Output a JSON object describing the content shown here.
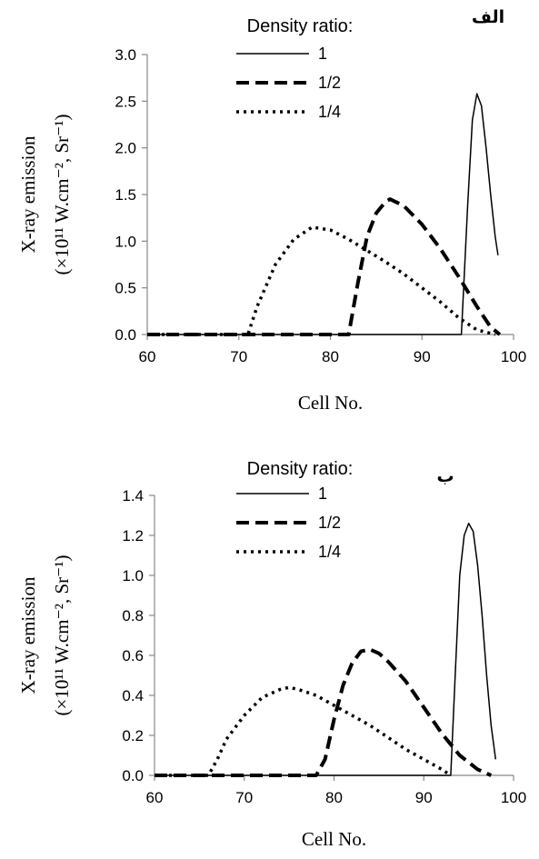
{
  "chart_data": [
    {
      "type": "line",
      "panel_label": "الف",
      "xlabel": "Cell No.",
      "ylabel_line1": "X-ray emission",
      "ylabel_line2": "(×10¹¹ W.cm⁻², Sr⁻¹)",
      "xlim": [
        60,
        100
      ],
      "ylim": [
        0,
        3.0
      ],
      "xticks": [
        60,
        70,
        80,
        90,
        100
      ],
      "yticks": [
        "0.0",
        "0.5",
        "1.0",
        "1.5",
        "2.0",
        "2.5",
        "3.0"
      ],
      "grid": false,
      "legend_title": "Density ratio:",
      "legend_position": "top",
      "series": [
        {
          "name": "1",
          "style": "solid",
          "x": [
            60,
            94.3,
            95,
            95.5,
            96,
            96.5,
            97,
            97.5,
            98,
            98.3
          ],
          "y": [
            0,
            0,
            1.4,
            2.3,
            2.58,
            2.45,
            2.0,
            1.5,
            1.05,
            0.85
          ]
        },
        {
          "name": "1/2",
          "style": "dashed",
          "x": [
            60,
            82,
            83,
            84,
            85,
            86,
            86.5,
            88,
            90,
            92,
            94,
            96,
            97.5,
            98.5
          ],
          "y": [
            0,
            0,
            0.55,
            1.05,
            1.3,
            1.42,
            1.45,
            1.38,
            1.18,
            0.92,
            0.62,
            0.3,
            0.08,
            0
          ]
        },
        {
          "name": "1/4",
          "style": "dotted",
          "x": [
            60,
            71,
            72,
            74,
            76,
            78,
            80,
            82,
            84,
            86,
            88,
            90,
            92,
            94,
            96,
            98
          ],
          "y": [
            0,
            0,
            0.3,
            0.75,
            1.02,
            1.15,
            1.12,
            1.02,
            0.9,
            0.78,
            0.65,
            0.5,
            0.35,
            0.18,
            0.05,
            0
          ]
        }
      ]
    },
    {
      "type": "line",
      "panel_label": "ب",
      "xlabel": "Cell No.",
      "ylabel_line1": "X-ray emission",
      "ylabel_line2": "(×10¹¹ W.cm⁻², Sr⁻¹)",
      "xlim": [
        60,
        100
      ],
      "ylim": [
        0,
        1.4
      ],
      "xticks": [
        60,
        70,
        80,
        90,
        100
      ],
      "yticks": [
        "0.0",
        "0.2",
        "0.4",
        "0.6",
        "0.8",
        "1.0",
        "1.2",
        "1.4"
      ],
      "grid": false,
      "legend_title": "Density ratio:",
      "legend_position": "top",
      "series": [
        {
          "name": "1",
          "style": "solid",
          "x": [
            60,
            93,
            93.5,
            94,
            94.5,
            95,
            95.5,
            96,
            96.5,
            97,
            97.5,
            98
          ],
          "y": [
            0,
            0,
            0.5,
            1.0,
            1.2,
            1.26,
            1.22,
            1.05,
            0.8,
            0.5,
            0.25,
            0.08
          ]
        },
        {
          "name": "1/2",
          "style": "dashed",
          "x": [
            60,
            78,
            79,
            80,
            81,
            82,
            83,
            84,
            85,
            86,
            88,
            90,
            92,
            94,
            96,
            97.5
          ],
          "y": [
            0,
            0,
            0.08,
            0.28,
            0.45,
            0.56,
            0.62,
            0.63,
            0.61,
            0.57,
            0.47,
            0.34,
            0.21,
            0.1,
            0.03,
            0
          ]
        },
        {
          "name": "1/4",
          "style": "dotted",
          "x": [
            60,
            66,
            67,
            68,
            70,
            72,
            74,
            75,
            76,
            78,
            80,
            82,
            84,
            86,
            88,
            90,
            92,
            93
          ],
          "y": [
            0,
            0,
            0.08,
            0.18,
            0.3,
            0.39,
            0.43,
            0.44,
            0.43,
            0.4,
            0.35,
            0.3,
            0.25,
            0.19,
            0.13,
            0.08,
            0.03,
            0
          ]
        }
      ]
    }
  ]
}
